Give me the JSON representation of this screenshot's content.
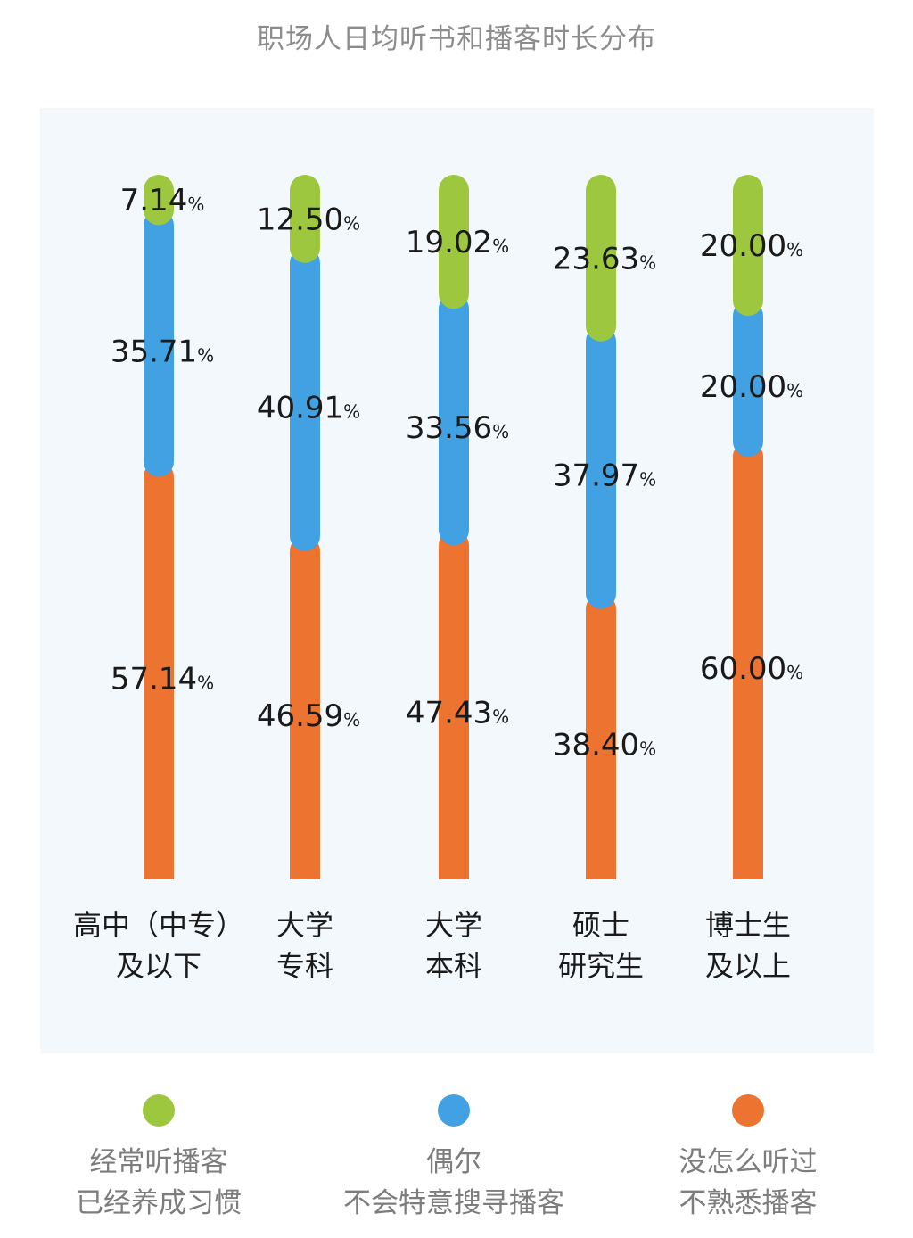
{
  "chart_data": {
    "type": "bar",
    "stacked": true,
    "title": "职场人日均听书和播客时长分布",
    "categories": [
      [
        "高中（中专）",
        "及以下"
      ],
      [
        "大学",
        "专科"
      ],
      [
        "大学",
        "本科"
      ],
      [
        "硕士",
        "研究生"
      ],
      [
        "博士生",
        "及以上"
      ]
    ],
    "series": [
      {
        "name": "经常听播客 已经养成习惯",
        "label_lines": [
          "经常听播客",
          "已经养成习惯"
        ],
        "color": "#9dc73f",
        "values": [
          7.14,
          12.5,
          19.02,
          23.63,
          20.0
        ],
        "labels": [
          "7.14",
          "12.50",
          "19.02",
          "23.63",
          "20.00"
        ]
      },
      {
        "name": "偶尔 不会特意搜寻播客",
        "label_lines": [
          "偶尔",
          "不会特意搜寻播客"
        ],
        "color": "#41a1e3",
        "values": [
          35.71,
          40.91,
          33.56,
          37.97,
          20.0
        ],
        "labels": [
          "35.71",
          "40.91",
          "33.56",
          "37.97",
          "20.00"
        ]
      },
      {
        "name": "没怎么听过 不熟悉播客",
        "label_lines": [
          "没怎么听过",
          "不熟悉播客"
        ],
        "color": "#ec7330",
        "values": [
          57.14,
          46.59,
          47.43,
          38.4,
          60.0
        ],
        "labels": [
          "57.14",
          "46.59",
          "47.43",
          "38.40",
          "60.00"
        ]
      }
    ],
    "unit": "%",
    "ylim": [
      0,
      100
    ],
    "grid": false,
    "legend_position": "bottom"
  }
}
